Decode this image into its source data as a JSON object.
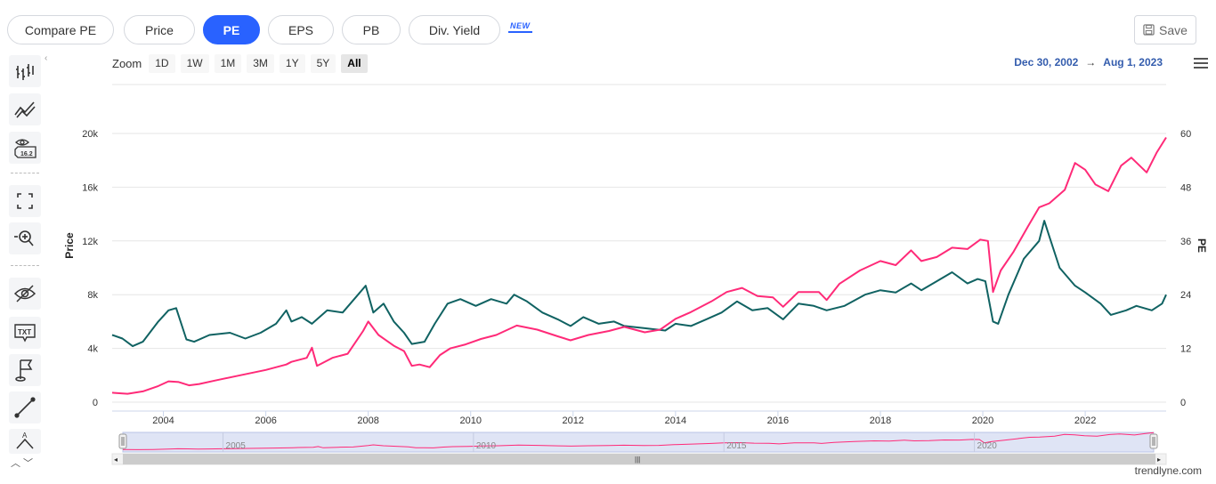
{
  "tabs": [
    {
      "label": "Compare PE",
      "active": false
    },
    {
      "label": "Price",
      "active": false
    },
    {
      "label": "PE",
      "active": true
    },
    {
      "label": "EPS",
      "active": false
    },
    {
      "label": "PB",
      "active": false
    },
    {
      "label": "Div. Yield",
      "active": false
    }
  ],
  "new_badge": "NEW",
  "save_label": "Save",
  "toolbar_icons": [
    "bars-icon",
    "trend-lines-icon",
    "eye-label-icon",
    "fullscreen-icon",
    "zoom-icon",
    "hide-icon",
    "text-icon",
    "flag-icon",
    "line-icon",
    "pen-icon"
  ],
  "zoom": {
    "label": "Zoom",
    "buttons": [
      "1D",
      "1W",
      "1M",
      "3M",
      "1Y",
      "5Y",
      "All"
    ],
    "selected": "All"
  },
  "range": {
    "from": "Dec 30, 2002",
    "arrow": "→",
    "to": "Aug 1, 2023"
  },
  "credit": "trendlyne.com",
  "colors": {
    "price": "#ff2a78",
    "pe": "#106262",
    "accent": "#2962ff"
  },
  "chart_data": {
    "type": "line",
    "xlabel": "",
    "ylabel_left": "Price",
    "ylabel_right": "PE",
    "xlim": [
      2003.0,
      2023.58
    ],
    "ylim_left": [
      0,
      20000
    ],
    "ylim_right": [
      0,
      60
    ],
    "left_ticks": [
      "0",
      "4k",
      "8k",
      "12k",
      "16k",
      "20k"
    ],
    "right_ticks": [
      "0",
      "12",
      "24",
      "36",
      "48",
      "60"
    ],
    "x_ticks": [
      "2004",
      "2006",
      "2008",
      "2010",
      "2012",
      "2014",
      "2016",
      "2018",
      "2020",
      "2022"
    ],
    "navigator_ticks": [
      "2005",
      "2010",
      "2015",
      "2020"
    ],
    "series": [
      {
        "name": "Price",
        "axis": "left",
        "points": [
          [
            2003.0,
            700
          ],
          [
            2003.3,
            620
          ],
          [
            2003.6,
            800
          ],
          [
            2003.9,
            1200
          ],
          [
            2004.1,
            1550
          ],
          [
            2004.3,
            1500
          ],
          [
            2004.5,
            1250
          ],
          [
            2004.7,
            1350
          ],
          [
            2005.0,
            1600
          ],
          [
            2005.5,
            2000
          ],
          [
            2006.0,
            2400
          ],
          [
            2006.4,
            2800
          ],
          [
            2006.5,
            3000
          ],
          [
            2006.8,
            3300
          ],
          [
            2006.9,
            4050
          ],
          [
            2007.0,
            2700
          ],
          [
            2007.3,
            3300
          ],
          [
            2007.6,
            3600
          ],
          [
            2007.9,
            5300
          ],
          [
            2008.0,
            6000
          ],
          [
            2008.2,
            5000
          ],
          [
            2008.5,
            4200
          ],
          [
            2008.7,
            3800
          ],
          [
            2008.85,
            2700
          ],
          [
            2009.0,
            2800
          ],
          [
            2009.2,
            2600
          ],
          [
            2009.4,
            3500
          ],
          [
            2009.6,
            4000
          ],
          [
            2009.9,
            4300
          ],
          [
            2010.2,
            4700
          ],
          [
            2010.5,
            5000
          ],
          [
            2010.9,
            5700
          ],
          [
            2011.3,
            5400
          ],
          [
            2011.7,
            4900
          ],
          [
            2011.95,
            4600
          ],
          [
            2012.3,
            5000
          ],
          [
            2012.7,
            5300
          ],
          [
            2013.0,
            5600
          ],
          [
            2013.4,
            5200
          ],
          [
            2013.7,
            5400
          ],
          [
            2014.0,
            6200
          ],
          [
            2014.3,
            6700
          ],
          [
            2014.7,
            7500
          ],
          [
            2015.0,
            8200
          ],
          [
            2015.3,
            8500
          ],
          [
            2015.6,
            7900
          ],
          [
            2015.9,
            7800
          ],
          [
            2016.1,
            7100
          ],
          [
            2016.4,
            8200
          ],
          [
            2016.8,
            8200
          ],
          [
            2016.95,
            7600
          ],
          [
            2017.2,
            8800
          ],
          [
            2017.6,
            9800
          ],
          [
            2018.0,
            10500
          ],
          [
            2018.3,
            10200
          ],
          [
            2018.6,
            11300
          ],
          [
            2018.8,
            10500
          ],
          [
            2019.1,
            10800
          ],
          [
            2019.4,
            11500
          ],
          [
            2019.7,
            11400
          ],
          [
            2019.95,
            12100
          ],
          [
            2020.1,
            12000
          ],
          [
            2020.2,
            8200
          ],
          [
            2020.35,
            9800
          ],
          [
            2020.6,
            11200
          ],
          [
            2020.9,
            13200
          ],
          [
            2021.1,
            14500
          ],
          [
            2021.3,
            14800
          ],
          [
            2021.6,
            15800
          ],
          [
            2021.8,
            17800
          ],
          [
            2022.0,
            17300
          ],
          [
            2022.2,
            16200
          ],
          [
            2022.45,
            15700
          ],
          [
            2022.7,
            17600
          ],
          [
            2022.9,
            18200
          ],
          [
            2023.2,
            17100
          ],
          [
            2023.4,
            18600
          ],
          [
            2023.58,
            19700
          ]
        ]
      },
      {
        "name": "PE",
        "axis": "right",
        "points": [
          [
            2003.0,
            15
          ],
          [
            2003.2,
            14.2
          ],
          [
            2003.4,
            12.5
          ],
          [
            2003.6,
            13.5
          ],
          [
            2003.9,
            18
          ],
          [
            2004.1,
            20.5
          ],
          [
            2004.25,
            21
          ],
          [
            2004.45,
            14
          ],
          [
            2004.6,
            13.5
          ],
          [
            2004.9,
            15
          ],
          [
            2005.3,
            15.5
          ],
          [
            2005.6,
            14.2
          ],
          [
            2005.9,
            15.5
          ],
          [
            2006.2,
            17.5
          ],
          [
            2006.4,
            20.5
          ],
          [
            2006.5,
            18
          ],
          [
            2006.7,
            19
          ],
          [
            2006.9,
            17.5
          ],
          [
            2007.2,
            20.5
          ],
          [
            2007.5,
            20
          ],
          [
            2007.8,
            24
          ],
          [
            2007.95,
            26
          ],
          [
            2008.1,
            20
          ],
          [
            2008.3,
            22
          ],
          [
            2008.5,
            18
          ],
          [
            2008.7,
            15.5
          ],
          [
            2008.85,
            13
          ],
          [
            2009.1,
            13.5
          ],
          [
            2009.3,
            17.5
          ],
          [
            2009.55,
            22
          ],
          [
            2009.8,
            23
          ],
          [
            2010.1,
            21.5
          ],
          [
            2010.4,
            23
          ],
          [
            2010.7,
            22
          ],
          [
            2010.85,
            24
          ],
          [
            2011.1,
            22.5
          ],
          [
            2011.4,
            20
          ],
          [
            2011.7,
            18.5
          ],
          [
            2011.95,
            17
          ],
          [
            2012.2,
            19
          ],
          [
            2012.5,
            17.5
          ],
          [
            2012.8,
            18
          ],
          [
            2013.0,
            17
          ],
          [
            2013.4,
            16.5
          ],
          [
            2013.8,
            16
          ],
          [
            2014.0,
            17.5
          ],
          [
            2014.3,
            17
          ],
          [
            2014.6,
            18.5
          ],
          [
            2014.9,
            20
          ],
          [
            2015.2,
            22.5
          ],
          [
            2015.5,
            20.5
          ],
          [
            2015.8,
            21
          ],
          [
            2016.1,
            18.5
          ],
          [
            2016.4,
            22
          ],
          [
            2016.7,
            21.5
          ],
          [
            2016.95,
            20.5
          ],
          [
            2017.3,
            21.5
          ],
          [
            2017.7,
            24
          ],
          [
            2018.0,
            25
          ],
          [
            2018.3,
            24.5
          ],
          [
            2018.6,
            26.5
          ],
          [
            2018.8,
            25
          ],
          [
            2019.1,
            27
          ],
          [
            2019.4,
            29
          ],
          [
            2019.7,
            26.5
          ],
          [
            2019.9,
            27.5
          ],
          [
            2020.05,
            27
          ],
          [
            2020.2,
            18
          ],
          [
            2020.3,
            17.5
          ],
          [
            2020.5,
            24
          ],
          [
            2020.8,
            32
          ],
          [
            2021.1,
            36
          ],
          [
            2021.2,
            40.5
          ],
          [
            2021.3,
            37
          ],
          [
            2021.5,
            30
          ],
          [
            2021.8,
            26
          ],
          [
            2022.0,
            24.5
          ],
          [
            2022.3,
            22
          ],
          [
            2022.5,
            19.5
          ],
          [
            2022.8,
            20.5
          ],
          [
            2023.0,
            21.5
          ],
          [
            2023.3,
            20.5
          ],
          [
            2023.5,
            22
          ],
          [
            2023.58,
            24
          ]
        ]
      }
    ]
  }
}
